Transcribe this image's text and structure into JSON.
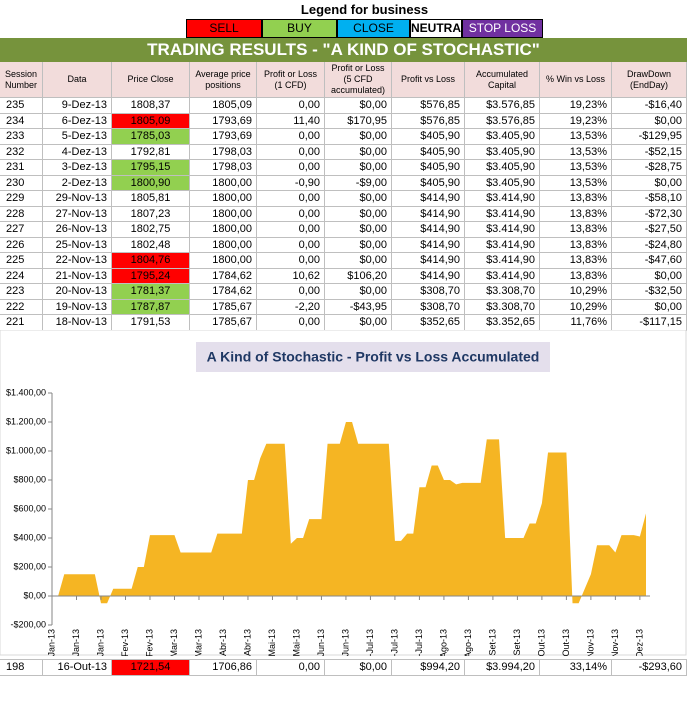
{
  "legend": {
    "title": "Legend for business",
    "items": [
      {
        "label": "SELL",
        "color": "#ff0000",
        "text_color": "#000000"
      },
      {
        "label": "BUY",
        "color": "#92d050",
        "text_color": "#000000"
      },
      {
        "label": "CLOSE",
        "color": "#00b0f0",
        "text_color": "#000000"
      },
      {
        "label": "NEUTRAL",
        "color": "#ffffff",
        "text_color": "#000000"
      },
      {
        "label": "STOP LOSS",
        "color": "#7030a0",
        "text_color": "#ffffff"
      }
    ]
  },
  "table": {
    "title": "TRADING RESULTS - \"A KIND OF STOCHASTIC\"",
    "headers": [
      "Session Number",
      "Data",
      "Price Close",
      "Average price positions",
      "Profit or Loss (1 CFD)",
      "Profit or Loss (5 CFD accumulated)",
      "Profit vs Loss",
      "Accumulated Capital",
      "% Win vs Loss",
      "DrawDown (EndDay)"
    ],
    "rows": [
      [
        "235",
        "9-Dez-13",
        "1808,37",
        "1805,09",
        "0,00",
        "$0,00",
        "$576,85",
        "$3.576,85",
        "19,23%",
        "-$16,40"
      ],
      [
        "234",
        "6-Dez-13",
        "1805,09",
        "1793,69",
        "11,40",
        "$170,95",
        "$576,85",
        "$3.576,85",
        "19,23%",
        "$0,00"
      ],
      [
        "233",
        "5-Dez-13",
        "1785,03",
        "1793,69",
        "0,00",
        "$0,00",
        "$405,90",
        "$3.405,90",
        "13,53%",
        "-$129,95"
      ],
      [
        "232",
        "4-Dez-13",
        "1792,81",
        "1798,03",
        "0,00",
        "$0,00",
        "$405,90",
        "$3.405,90",
        "13,53%",
        "-$52,15"
      ],
      [
        "231",
        "3-Dez-13",
        "1795,15",
        "1798,03",
        "0,00",
        "$0,00",
        "$405,90",
        "$3.405,90",
        "13,53%",
        "-$28,75"
      ],
      [
        "230",
        "2-Dez-13",
        "1800,90",
        "1800,00",
        "-0,90",
        "-$9,00",
        "$405,90",
        "$3.405,90",
        "13,53%",
        "$0,00"
      ],
      [
        "229",
        "29-Nov-13",
        "1805,81",
        "1800,00",
        "0,00",
        "$0,00",
        "$414,90",
        "$3.414,90",
        "13,83%",
        "-$58,10"
      ],
      [
        "228",
        "27-Nov-13",
        "1807,23",
        "1800,00",
        "0,00",
        "$0,00",
        "$414,90",
        "$3.414,90",
        "13,83%",
        "-$72,30"
      ],
      [
        "227",
        "26-Nov-13",
        "1802,75",
        "1800,00",
        "0,00",
        "$0,00",
        "$414,90",
        "$3.414,90",
        "13,83%",
        "-$27,50"
      ],
      [
        "226",
        "25-Nov-13",
        "1802,48",
        "1800,00",
        "0,00",
        "$0,00",
        "$414,90",
        "$3.414,90",
        "13,83%",
        "-$24,80"
      ],
      [
        "225",
        "22-Nov-13",
        "1804,76",
        "1800,00",
        "0,00",
        "$0,00",
        "$414,90",
        "$3.414,90",
        "13,83%",
        "-$47,60"
      ],
      [
        "224",
        "21-Nov-13",
        "1795,24",
        "1784,62",
        "10,62",
        "$106,20",
        "$414,90",
        "$3.414,90",
        "13,83%",
        "$0,00"
      ],
      [
        "223",
        "20-Nov-13",
        "1781,37",
        "1784,62",
        "0,00",
        "$0,00",
        "$308,70",
        "$3.308,70",
        "10,29%",
        "-$32,50"
      ],
      [
        "222",
        "19-Nov-13",
        "1787,87",
        "1785,67",
        "-2,20",
        "-$43,95",
        "$308,70",
        "$3.308,70",
        "10,29%",
        "$0,00"
      ],
      [
        "221",
        "18-Nov-13",
        "1791,53",
        "1785,67",
        "0,00",
        "$0,00",
        "$352,65",
        "$3.352,65",
        "11,76%",
        "-$117,15"
      ]
    ],
    "price_colors": [
      null,
      "#ff0000",
      "#92d050",
      null,
      "#92d050",
      "#92d050",
      null,
      null,
      null,
      null,
      "#ff0000",
      "#ff0000",
      "#92d050",
      "#92d050",
      null
    ],
    "bottom_row": [
      "198",
      "16-Out-13",
      "1721,54",
      "1706,86",
      "0,00",
      "$0,00",
      "$994,20",
      "$3.994,20",
      "33,14%",
      "-$293,60"
    ],
    "bottom_price_color": "#ff0000"
  },
  "chart_data": {
    "type": "area",
    "title": "A Kind of Stochastic - Profit vs Loss Accumulated",
    "color": "#f5b523",
    "categories": [
      "2-Jan-13",
      null,
      null,
      null,
      "16-Jan-13",
      null,
      null,
      null,
      "30-Jan-13",
      null,
      null,
      null,
      "13-Fev-13",
      null,
      null,
      null,
      "27-Fev-13",
      null,
      null,
      null,
      "13-Mar-13",
      null,
      null,
      null,
      "27-Mar-13",
      null,
      null,
      null,
      "10-Abr-13",
      null,
      null,
      null,
      "24-Abr-13",
      null,
      null,
      null,
      "8-Mai-13",
      null,
      null,
      null,
      "22-Mai-13",
      null,
      null,
      null,
      "5-Jun-13",
      null,
      null,
      null,
      "19-Jun-13",
      null,
      null,
      null,
      "3-Jul-13",
      null,
      null,
      null,
      "17-Jul-13",
      null,
      null,
      null,
      "31-Jul-13",
      null,
      null,
      null,
      "14-Ago-13",
      null,
      null,
      null,
      "28-Ago-13",
      null,
      null,
      null,
      "11-Set-13",
      null,
      null,
      null,
      "25-Set-13",
      null,
      null,
      null,
      "9-Out-13",
      null,
      null,
      null,
      "23-Out-13",
      null,
      null,
      null,
      "6-Nov-13",
      null,
      null,
      null,
      "20-Nov-13",
      null,
      null,
      null,
      "4-Dez-13",
      null
    ],
    "values": [
      0,
      0,
      150,
      150,
      150,
      150,
      150,
      150,
      -50,
      -50,
      50,
      50,
      50,
      50,
      200,
      200,
      420,
      420,
      420,
      420,
      420,
      300,
      300,
      300,
      300,
      300,
      300,
      430,
      430,
      430,
      430,
      430,
      800,
      800,
      950,
      1050,
      1050,
      1050,
      1050,
      360,
      400,
      400,
      530,
      530,
      530,
      1050,
      1050,
      1050,
      1200,
      1200,
      1050,
      1050,
      1050,
      1050,
      1050,
      1050,
      380,
      380,
      430,
      430,
      750,
      750,
      900,
      900,
      800,
      800,
      770,
      780,
      780,
      780,
      780,
      1080,
      1080,
      1080,
      400,
      400,
      400,
      400,
      500,
      500,
      640,
      990,
      990,
      990,
      990,
      -50,
      -50,
      50,
      150,
      350,
      350,
      350,
      300,
      420,
      420,
      420,
      410,
      570
    ],
    "ylim": [
      -200,
      1400
    ],
    "yticks": [
      {
        "value": -200,
        "label": "-$200,00"
      },
      {
        "value": 0,
        "label": "$0,00"
      },
      {
        "value": 200,
        "label": "$200,00"
      },
      {
        "value": 400,
        "label": "$400,00"
      },
      {
        "value": 600,
        "label": "$600,00"
      },
      {
        "value": 800,
        "label": "$800,00"
      },
      {
        "value": 1000,
        "label": "$1.000,00"
      },
      {
        "value": 1200,
        "label": "$1.200,00"
      },
      {
        "value": 1400,
        "label": "$1.400,00"
      }
    ],
    "grid": false
  }
}
